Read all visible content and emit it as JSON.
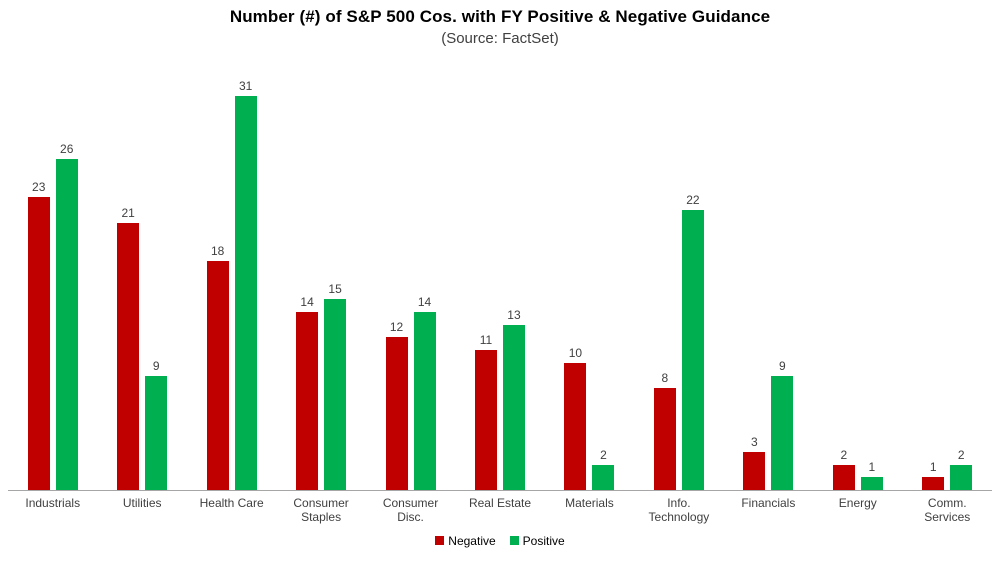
{
  "chart": {
    "title": "Number (#) of S&P 500 Cos. with FY Positive & Negative Guidance",
    "subtitle": "(Source: FactSet)"
  },
  "chart_data": {
    "type": "bar",
    "title": "Number (#) of S&P 500 Cos. with FY Positive & Negative Guidance",
    "subtitle": "(Source: FactSet)",
    "categories": [
      "Industrials",
      "Utilities",
      "Health Care",
      "Consumer Staples",
      "Consumer Disc.",
      "Real Estate",
      "Materials",
      "Info. Technology",
      "Financials",
      "Energy",
      "Comm. Services"
    ],
    "series": [
      {
        "name": "Negative",
        "color": "#c00000",
        "values": [
          23,
          21,
          18,
          14,
          12,
          11,
          10,
          8,
          3,
          2,
          1
        ]
      },
      {
        "name": "Positive",
        "color": "#00b050",
        "values": [
          26,
          9,
          31,
          15,
          14,
          13,
          2,
          22,
          9,
          1,
          2
        ]
      }
    ],
    "ylim": [
      0,
      33
    ],
    "grid": false,
    "y_axis_visible": false,
    "data_labels": true,
    "legend_position": "bottom"
  }
}
